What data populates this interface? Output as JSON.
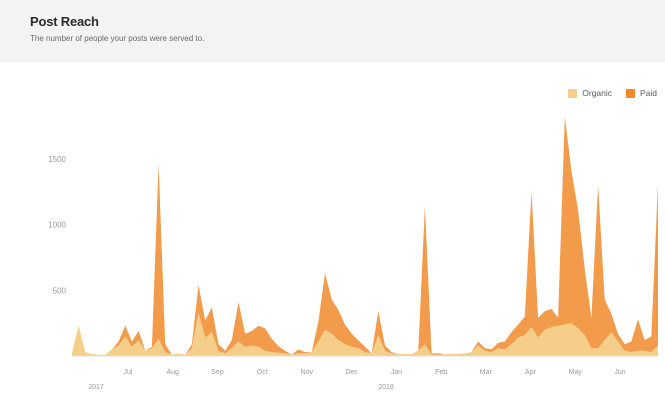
{
  "header": {
    "title": "Post Reach",
    "subtitle": "The number of people your posts were served to."
  },
  "colors": {
    "organic": "#f5cf8a",
    "paid": "#f08a2a",
    "header_bg": "#f2f3f4",
    "axis_text": "#9a9a9a"
  },
  "chart_data": {
    "type": "area",
    "stacked": true,
    "title": "Post Reach",
    "subtitle": "The number of people your posts were served to.",
    "xlabel": "",
    "ylabel": "",
    "ylim": [
      0,
      1750
    ],
    "yticks": [
      500,
      1000,
      1500
    ],
    "grid": false,
    "legend_position": "top-right",
    "legend": [
      "Organic",
      "Paid"
    ],
    "x_tick_labels": [
      "Jul",
      "Aug",
      "Sep",
      "Oct",
      "Nov",
      "Dec",
      "Jan",
      "Feb",
      "Mar",
      "Apr",
      "May",
      "Jun"
    ],
    "x_year_labels": [
      "2017",
      "2018"
    ],
    "series": [
      {
        "name": "Organic",
        "values": [
          20,
          230,
          30,
          15,
          10,
          10,
          50,
          80,
          150,
          70,
          120,
          40,
          60,
          130,
          30,
          10,
          20,
          10,
          60,
          330,
          140,
          180,
          40,
          20,
          60,
          110,
          70,
          80,
          70,
          40,
          30,
          25,
          20,
          10,
          20,
          20,
          30,
          110,
          200,
          170,
          120,
          90,
          70,
          60,
          30,
          20,
          160,
          40,
          20,
          15,
          15,
          15,
          40,
          90,
          10,
          10,
          15,
          15,
          15,
          20,
          30,
          80,
          40,
          30,
          60,
          50,
          90,
          140,
          160,
          220,
          140,
          200,
          220,
          230,
          240,
          250,
          210,
          160,
          60,
          60,
          120,
          180,
          110,
          40,
          30,
          40,
          40,
          30,
          80
        ]
      },
      {
        "name": "Paid",
        "values": [
          0,
          0,
          0,
          0,
          0,
          0,
          0,
          30,
          80,
          40,
          70,
          0,
          10,
          1330,
          60,
          0,
          0,
          0,
          30,
          210,
          130,
          190,
          50,
          20,
          60,
          300,
          100,
          110,
          160,
          170,
          100,
          50,
          20,
          0,
          30,
          10,
          0,
          150,
          430,
          260,
          230,
          150,
          100,
          60,
          40,
          0,
          180,
          40,
          10,
          0,
          0,
          0,
          0,
          1050,
          10,
          10,
          0,
          0,
          0,
          0,
          0,
          30,
          20,
          20,
          40,
          60,
          90,
          100,
          140,
          1030,
          150,
          140,
          140,
          60,
          1580,
          1160,
          900,
          500,
          230,
          1240,
          310,
          140,
          60,
          50,
          80,
          240,
          80,
          120,
          1230
        ]
      }
    ]
  }
}
